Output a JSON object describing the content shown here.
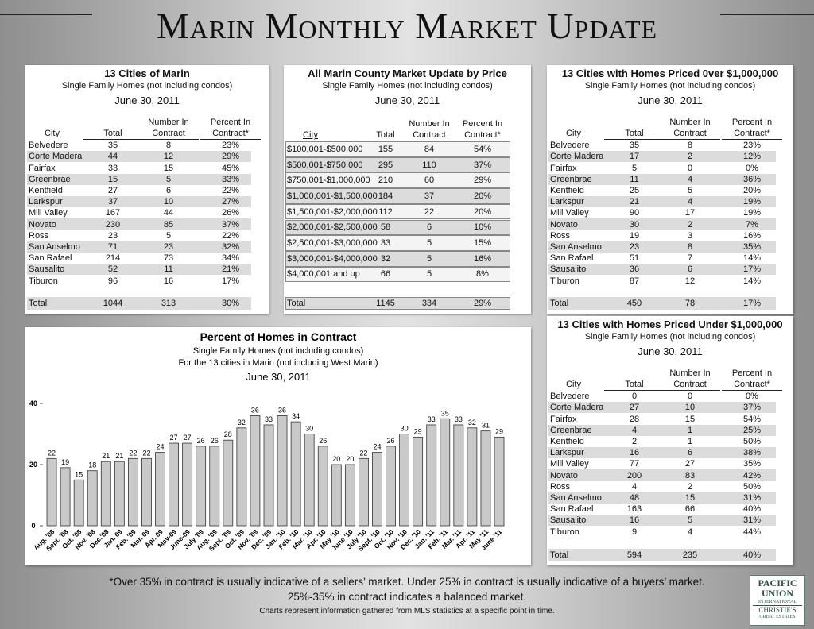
{
  "title": "Marin Monthly Market Update",
  "tables": [
    {
      "title": "13 Cities of Marin",
      "subtitle": "Single Family Homes (not including condos)",
      "date": "June 30, 2011",
      "headers": [
        "City",
        "Total",
        "Number In Contract",
        "Percent In Contract*"
      ],
      "rows": [
        [
          "Belvedere",
          "35",
          "8",
          "23%"
        ],
        [
          "Corte Madera",
          "44",
          "12",
          "29%"
        ],
        [
          "Fairfax",
          "33",
          "15",
          "45%"
        ],
        [
          "Greenbrae",
          "15",
          "5",
          "33%"
        ],
        [
          "Kentfield",
          "27",
          "6",
          "22%"
        ],
        [
          "Larkspur",
          "37",
          "10",
          "27%"
        ],
        [
          "Mill Valley",
          "167",
          "44",
          "26%"
        ],
        [
          "Novato",
          "230",
          "85",
          "37%"
        ],
        [
          "Ross",
          "23",
          "5",
          "22%"
        ],
        [
          "San Anselmo",
          "71",
          "23",
          "32%"
        ],
        [
          "San Rafael",
          "214",
          "73",
          "34%"
        ],
        [
          "Sausalito",
          "52",
          "11",
          "21%"
        ],
        [
          "Tiburon",
          "96",
          "16",
          "17%"
        ]
      ],
      "total": [
        "Total",
        "1044",
        "313",
        "30%"
      ]
    },
    {
      "title": "All Marin County Market Update by Price",
      "subtitle": "Single Family Homes (not including condos)",
      "date": "June 30, 2011",
      "headers": [
        "City",
        "Total",
        "Number In Contract",
        "Percent In Contract*"
      ],
      "rows": [
        [
          "$100,001-$500,000",
          "155",
          "84",
          "54%"
        ],
        [
          "$500,001-$750,000",
          "295",
          "110",
          "37%"
        ],
        [
          "$750,001-$1,000,000",
          "210",
          "60",
          "29%"
        ],
        [
          "$1,000,001-$1,500,000",
          "184",
          "37",
          "20%"
        ],
        [
          "$1,500,001-$2,000,000",
          "112",
          "22",
          "20%"
        ],
        [
          "$2,000,001-$2,500,000",
          "58",
          "6",
          "10%"
        ],
        [
          "$2,500,001-$3,000,000",
          "33",
          "5",
          "15%"
        ],
        [
          "$3,000,001-$4,000,000",
          "32",
          "5",
          "16%"
        ],
        [
          "$4,000,001 and up",
          "66",
          "5",
          "8%"
        ]
      ],
      "total": [
        "Total",
        "1145",
        "334",
        "29%"
      ]
    },
    {
      "title": "13 Cities with Homes Priced 0ver $1,000,000",
      "subtitle": "Single Family Homes (not including condos)",
      "date": "June 30, 2011",
      "headers": [
        "City",
        "Total",
        "Number In Contract",
        "Percent In Contract*"
      ],
      "rows": [
        [
          "Belvedere",
          "35",
          "8",
          "23%"
        ],
        [
          "Corte Madera",
          "17",
          "2",
          "12%"
        ],
        [
          "Fairfax",
          "5",
          "0",
          "0%"
        ],
        [
          "Greenbrae",
          "11",
          "4",
          "36%"
        ],
        [
          "Kentfield",
          "25",
          "5",
          "20%"
        ],
        [
          "Larkspur",
          "21",
          "4",
          "19%"
        ],
        [
          "Mill Valley",
          "90",
          "17",
          "19%"
        ],
        [
          "Novato",
          "30",
          "2",
          "7%"
        ],
        [
          "Ross",
          "19",
          "3",
          "16%"
        ],
        [
          "San Anselmo",
          "23",
          "8",
          "35%"
        ],
        [
          "San Rafael",
          "51",
          "7",
          "14%"
        ],
        [
          "Sausalito",
          "36",
          "6",
          "17%"
        ],
        [
          "Tiburon",
          "87",
          "12",
          "14%"
        ]
      ],
      "total": [
        "Total",
        "450",
        "78",
        "17%"
      ]
    },
    {
      "title": "13 Cities with Homes Priced Under $1,000,000",
      "subtitle": "Single Family Homes (not including condos)",
      "date": "June 30, 2011",
      "headers": [
        "City",
        "Total",
        "Number In Contract",
        "Percent In Contract*"
      ],
      "rows": [
        [
          "Belvedere",
          "0",
          "0",
          "0%"
        ],
        [
          "Corte Madera",
          "27",
          "10",
          "37%"
        ],
        [
          "Fairfax",
          "28",
          "15",
          "54%"
        ],
        [
          "Greenbrae",
          "4",
          "1",
          "25%"
        ],
        [
          "Kentfield",
          "2",
          "1",
          "50%"
        ],
        [
          "Larkspur",
          "16",
          "6",
          "38%"
        ],
        [
          "Mill Valley",
          "77",
          "27",
          "35%"
        ],
        [
          "Novato",
          "200",
          "83",
          "42%"
        ],
        [
          "Ross",
          "4",
          "2",
          "50%"
        ],
        [
          "San Anselmo",
          "48",
          "15",
          "31%"
        ],
        [
          "San Rafael",
          "163",
          "66",
          "40%"
        ],
        [
          "Sausalito",
          "16",
          "5",
          "31%"
        ],
        [
          "Tiburon",
          "9",
          "4",
          "44%"
        ]
      ],
      "total": [
        "Total",
        "594",
        "235",
        "40%"
      ]
    }
  ],
  "chart_data": {
    "type": "bar",
    "title": "Percent of Homes in Contract",
    "subtitle": "Single Family Homes (not including condos)",
    "subtitle2": "For the 13 cities in Marin (not including West Marin)",
    "date": "June 30, 2011",
    "categories": [
      "Aug. '08",
      "Sept. '08",
      "Oct. '08",
      "Nov. '08",
      "Dec.'08",
      "Jan. 09",
      "Feb. '09",
      "Mar. 09",
      "Apr. 09",
      "May-09",
      "June-09",
      "July '09",
      "Aug. '09",
      "Sept. '09",
      "Oct. '09",
      "Nov. '09",
      "Dec. '09",
      "Jan. '10",
      "Feb. '10",
      "Mar. '10",
      "Apr. '10",
      "May '10",
      "June '10",
      "July '10",
      "Sept. '10",
      "Oct. '10",
      "Nov. '10",
      "Dec. '10",
      "Jan. '11",
      "Feb. '11",
      "Mar. '11",
      "Apr. '11",
      "May '11",
      "June '11"
    ],
    "values": [
      22,
      19,
      15,
      18,
      21,
      21,
      22,
      22,
      24,
      27,
      27,
      26,
      26,
      28,
      32,
      36,
      33,
      36,
      34,
      30,
      26,
      20,
      20,
      22,
      24,
      26,
      30,
      29,
      33,
      35,
      33,
      32,
      31,
      29
    ],
    "color": "#c9c9c9",
    "ylim": [
      0,
      40
    ],
    "yticks": [
      0,
      20,
      40
    ]
  },
  "footer": [
    "*Over 35% in contract is usually indicative of a sellers’ market.  Under 25% in contract is usually indicative of a buyers’ market.",
    "25%-35% in contract indicates a balanced market.",
    "Charts represent information gathered from MLS statistics at a specific point in time."
  ],
  "logo": [
    "PACIFIC",
    "UNION",
    "INTERNATIONAL",
    "CHRISTIE'S",
    "GREAT ESTATES"
  ]
}
